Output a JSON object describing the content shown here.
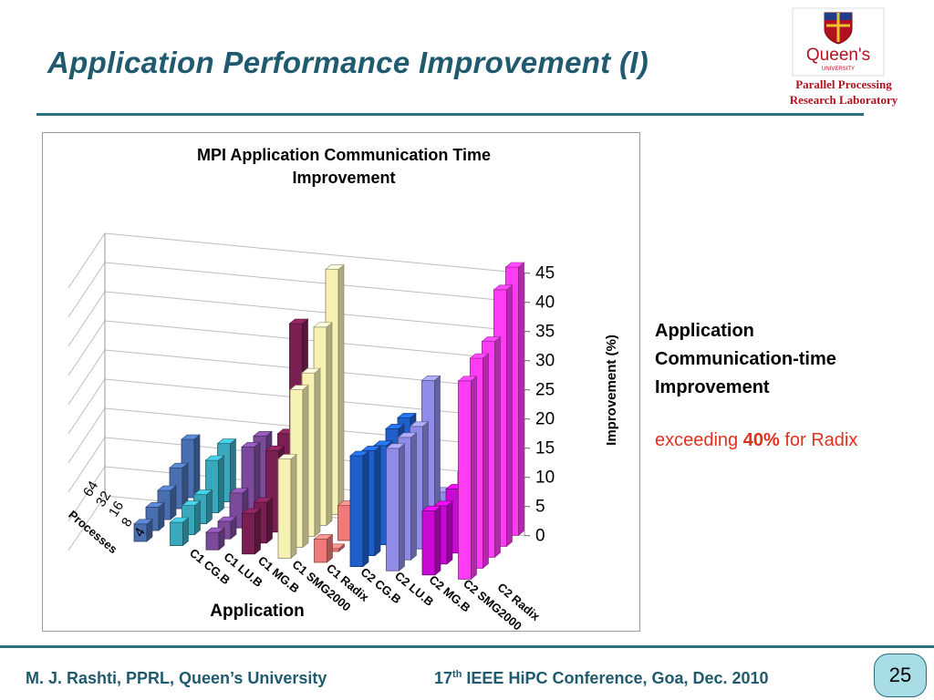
{
  "slide": {
    "title": "Application Performance Improvement (I)",
    "lab_line1": "Parallel Processing",
    "lab_line2": "Research Laboratory",
    "logo_text": "Queen's",
    "logo_subtext": "UNIVERSITY",
    "side_line1": "Application",
    "side_line2": "Communication-time",
    "side_line3": "Improvement",
    "side_red_pre": "exceeding ",
    "side_red_bold": "40%",
    "side_red_post": " for Radix",
    "footer_left": "M. J. Rashti, PPRL, Queen’s University",
    "footer_right_a": "17",
    "footer_right_sup": "th",
    "footer_right_b": " IEEE HiPC Conference, Goa, Dec. 2010",
    "page_number": "25"
  },
  "chart_data": {
    "type": "bar",
    "subtype": "3d-column",
    "title": "MPI Application  Communication  Time Improvement",
    "xlabel": "Application",
    "ylabel": "Improvement  (%)",
    "zlabel": "Processes",
    "ylim": [
      0,
      45
    ],
    "yticks": [
      "0",
      "5",
      "10",
      "15",
      "20",
      "25",
      "30",
      "35",
      "40",
      "45"
    ],
    "categories": [
      "C1 CG.B",
      "C1 LU.B",
      "C1 MG.B",
      "C1 SMG2000",
      "C1 Radix",
      "C2 CG.B",
      "C2 LU.B",
      "C2 MG.B",
      "C2 SMG2000",
      "C2 Radix"
    ],
    "depth_categories": [
      "4",
      "8",
      "16",
      "32",
      "64"
    ],
    "series": [
      {
        "name": "4",
        "values": [
          3,
          4,
          3,
          7,
          17,
          4,
          19,
          21,
          11,
          34
        ]
      },
      {
        "name": "8",
        "values": [
          4,
          5,
          3,
          7,
          27,
          0.5,
          18,
          21,
          10,
          36
        ]
      },
      {
        "name": "16",
        "values": [
          5,
          5,
          6,
          14,
          28,
          6,
          17,
          21,
          11,
          37
        ]
      },
      {
        "name": "32",
        "values": [
          7,
          9,
          12,
          15,
          34,
          5,
          18,
          27,
          12,
          44
        ]
      },
      {
        "name": "64",
        "values": [
          10,
          10,
          12,
          32,
          42,
          5,
          18,
          6,
          15,
          46
        ]
      }
    ],
    "colors": [
      "#4a6fb0",
      "#3aa8bc",
      "#7b4a9a",
      "#7a1f52",
      "#f7f1b4",
      "#f07a78",
      "#1f5fc9",
      "#8e8ce6",
      "#c90ad4",
      "#ff3bf3"
    ],
    "grid": true,
    "legend": "none"
  }
}
